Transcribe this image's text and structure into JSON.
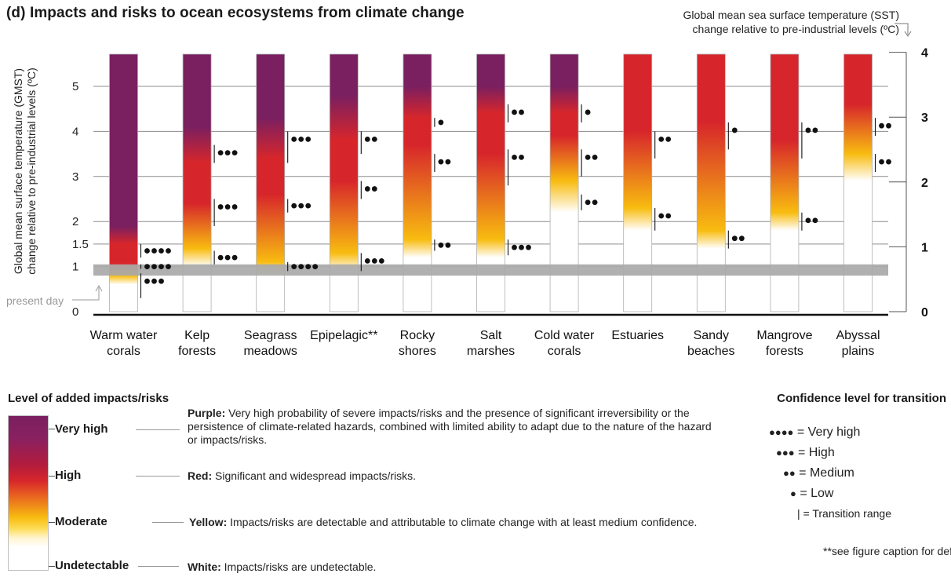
{
  "title": "(d) Impacts and risks to ocean ecosystems from climate change",
  "colors": {
    "purple": "#7a1f60",
    "red": "#d7262b",
    "yellow": "#f8bc10",
    "white": "#ffffff",
    "present_day_band": "#a9a9a9"
  },
  "chart_data": {
    "type": "burning-ember",
    "left_axis": {
      "label_line1": "Global mean surface temperature (GMST)",
      "label_line2": "change relative to pre-industrial levels (ºC)",
      "ticks": [
        {
          "value": 0,
          "label": "0"
        },
        {
          "value": 1,
          "label": "1"
        },
        {
          "value": 1.5,
          "label": "1.5"
        },
        {
          "value": 2,
          "label": "2"
        },
        {
          "value": 3,
          "label": "3"
        },
        {
          "value": 4,
          "label": "4"
        },
        {
          "value": 5,
          "label": "5"
        }
      ],
      "range": [
        0,
        5.75
      ]
    },
    "right_axis": {
      "label_line1": "Global mean sea surface temperature (SST)",
      "label_line2": "change relative to pre-industrial levels (ºC)",
      "ticks": [
        {
          "value": 0,
          "label": "0"
        },
        {
          "value": 1,
          "label": "1"
        },
        {
          "value": 2,
          "label": "2"
        },
        {
          "value": 3,
          "label": "3"
        },
        {
          "value": 4,
          "label": "4"
        }
      ]
    },
    "present_day": {
      "label": "present day",
      "gmst_range": [
        0.8,
        1.05
      ]
    },
    "embers": [
      {
        "name_line1": "Warm water",
        "name_line2": "corals",
        "stops": [
          {
            "t": 0.6,
            "level": "white"
          },
          {
            "t": 0.8,
            "level": "yellow"
          },
          {
            "t": 1.05,
            "level": "red"
          },
          {
            "t": 1.5,
            "level": "red"
          },
          {
            "t": 1.9,
            "level": "purple"
          }
        ],
        "transitions": [
          {
            "from": 0.3,
            "to": 0.85,
            "confidence": "●●●"
          },
          {
            "from": 0.95,
            "to": 1.05,
            "confidence": "●●●●"
          },
          {
            "from": 1.2,
            "to": 1.5,
            "confidence": "●●●●"
          }
        ]
      },
      {
        "name_line1": "Kelp",
        "name_line2": "forests",
        "stops": [
          {
            "t": 1.0,
            "level": "white"
          },
          {
            "t": 1.4,
            "level": "yellow"
          },
          {
            "t": 2.4,
            "level": "red"
          },
          {
            "t": 3.3,
            "level": "red"
          },
          {
            "t": 4.1,
            "level": "purple"
          }
        ],
        "transitions": [
          {
            "from": 1.05,
            "to": 1.35,
            "confidence": "●●●"
          },
          {
            "from": 1.9,
            "to": 2.5,
            "confidence": "●●●"
          },
          {
            "from": 3.3,
            "to": 3.7,
            "confidence": "●●●"
          }
        ]
      },
      {
        "name_line1": "Seagrass",
        "name_line2": "meadows",
        "stops": [
          {
            "t": 0.8,
            "level": "white"
          },
          {
            "t": 1.1,
            "level": "yellow"
          },
          {
            "t": 2.6,
            "level": "red"
          },
          {
            "t": 3.4,
            "level": "red"
          },
          {
            "t": 4.3,
            "level": "purple"
          }
        ],
        "transitions": [
          {
            "from": 0.9,
            "to": 1.1,
            "confidence": "●●●●"
          },
          {
            "from": 2.2,
            "to": 2.5,
            "confidence": "●●●"
          },
          {
            "from": 3.3,
            "to": 4.0,
            "confidence": "●●●"
          }
        ]
      },
      {
        "name_line1": "Epipelagic**",
        "name_line2": "",
        "stops": [
          {
            "t": 0.9,
            "level": "white"
          },
          {
            "t": 1.3,
            "level": "yellow"
          },
          {
            "t": 2.9,
            "level": "red"
          },
          {
            "t": 3.8,
            "level": "red"
          },
          {
            "t": 4.8,
            "level": "purple"
          }
        ],
        "transitions": [
          {
            "from": 0.9,
            "to": 1.3,
            "confidence": "●●●"
          },
          {
            "from": 2.5,
            "to": 2.9,
            "confidence": "●●"
          },
          {
            "from": 3.5,
            "to": 4.0,
            "confidence": "●●"
          }
        ]
      },
      {
        "name_line1": "Rocky",
        "name_line2": "shores",
        "stops": [
          {
            "t": 1.2,
            "level": "white"
          },
          {
            "t": 1.6,
            "level": "yellow"
          },
          {
            "t": 3.7,
            "level": "red"
          },
          {
            "t": 4.3,
            "level": "red"
          },
          {
            "t": 5.0,
            "level": "purple"
          }
        ],
        "transitions": [
          {
            "from": 1.35,
            "to": 1.6,
            "confidence": "●●"
          },
          {
            "from": 3.1,
            "to": 3.5,
            "confidence": "●●"
          },
          {
            "from": 4.1,
            "to": 4.3,
            "confidence": "●"
          }
        ]
      },
      {
        "name_line1": "Salt",
        "name_line2": "marshes",
        "stops": [
          {
            "t": 1.2,
            "level": "white"
          },
          {
            "t": 1.6,
            "level": "yellow"
          },
          {
            "t": 3.5,
            "level": "red"
          },
          {
            "t": 4.4,
            "level": "red"
          },
          {
            "t": 5.0,
            "level": "purple"
          }
        ],
        "transitions": [
          {
            "from": 1.25,
            "to": 1.6,
            "confidence": "●●●"
          },
          {
            "from": 2.8,
            "to": 3.6,
            "confidence": "●●"
          },
          {
            "from": 4.2,
            "to": 4.6,
            "confidence": "●●"
          }
        ]
      },
      {
        "name_line1": "Cold water",
        "name_line2": "corals",
        "stops": [
          {
            "t": 2.2,
            "level": "white"
          },
          {
            "t": 2.9,
            "level": "yellow"
          },
          {
            "t": 3.9,
            "level": "red"
          },
          {
            "t": 4.4,
            "level": "red"
          },
          {
            "t": 5.0,
            "level": "purple"
          }
        ],
        "transitions": [
          {
            "from": 2.25,
            "to": 2.6,
            "confidence": "●●"
          },
          {
            "from": 3.0,
            "to": 3.6,
            "confidence": "●●"
          },
          {
            "from": 4.2,
            "to": 4.6,
            "confidence": "●"
          }
        ]
      },
      {
        "name_line1": "Estuaries",
        "name_line2": "",
        "stops": [
          {
            "t": 1.8,
            "level": "white"
          },
          {
            "t": 2.3,
            "level": "yellow"
          },
          {
            "t": 4.0,
            "level": "red"
          },
          {
            "t": 5.75,
            "level": "red"
          }
        ],
        "transitions": [
          {
            "from": 1.8,
            "to": 2.3,
            "confidence": "●●"
          },
          {
            "from": 3.4,
            "to": 4.0,
            "confidence": "●●"
          }
        ]
      },
      {
        "name_line1": "Sandy",
        "name_line2": "beaches",
        "stops": [
          {
            "t": 1.4,
            "level": "white"
          },
          {
            "t": 1.8,
            "level": "yellow"
          },
          {
            "t": 4.2,
            "level": "red"
          },
          {
            "t": 5.75,
            "level": "red"
          }
        ],
        "transitions": [
          {
            "from": 1.4,
            "to": 1.8,
            "confidence": "●●"
          },
          {
            "from": 3.6,
            "to": 4.2,
            "confidence": "●"
          }
        ]
      },
      {
        "name_line1": "Mangrove",
        "name_line2": "forests",
        "stops": [
          {
            "t": 1.8,
            "level": "white"
          },
          {
            "t": 2.2,
            "level": "yellow"
          },
          {
            "t": 3.8,
            "level": "red"
          },
          {
            "t": 5.75,
            "level": "red"
          }
        ],
        "transitions": [
          {
            "from": 1.8,
            "to": 2.2,
            "confidence": "●●"
          },
          {
            "from": 3.4,
            "to": 4.2,
            "confidence": "●●"
          }
        ]
      },
      {
        "name_line1": "Abyssal",
        "name_line2": "plains",
        "stops": [
          {
            "t": 2.9,
            "level": "white"
          },
          {
            "t": 3.5,
            "level": "yellow"
          },
          {
            "t": 4.6,
            "level": "red"
          },
          {
            "t": 5.75,
            "level": "red"
          }
        ],
        "transitions": [
          {
            "from": 3.1,
            "to": 3.5,
            "confidence": "●●"
          },
          {
            "from": 3.9,
            "to": 4.3,
            "confidence": "●●"
          }
        ]
      }
    ]
  },
  "legend": {
    "title": "Level of added impacts/risks",
    "levels": [
      {
        "name": "Very high",
        "desc_bold": "Purple:",
        "desc": " Very high probability of severe impacts/risks and the presence of significant irreversibility or the persistence of climate-related hazards, combined with limited ability to adapt due to the nature of the hazard or impacts/risks."
      },
      {
        "name": "High",
        "desc_bold": "Red:",
        "desc": " Significant and widespread impacts/risks."
      },
      {
        "name": "Moderate",
        "desc_bold": "Yellow:",
        "desc": " Impacts/risks are detectable and attributable to climate change with at least medium confidence."
      },
      {
        "name": "Undetectable",
        "desc_bold": "White:",
        "desc": " Impacts/risks are undetectable."
      }
    ]
  },
  "confidence_legend": {
    "title": "Confidence level for transition",
    "items": [
      {
        "dots": "●●●●",
        "label": "= Very high"
      },
      {
        "dots": "●●●",
        "label": "= High"
      },
      {
        "dots": "●●",
        "label": "= Medium"
      },
      {
        "dots": "●",
        "label": "= Low"
      },
      {
        "dots": "|",
        "label": "= Transition range"
      }
    ],
    "footnote": "**see figure caption for definition"
  }
}
